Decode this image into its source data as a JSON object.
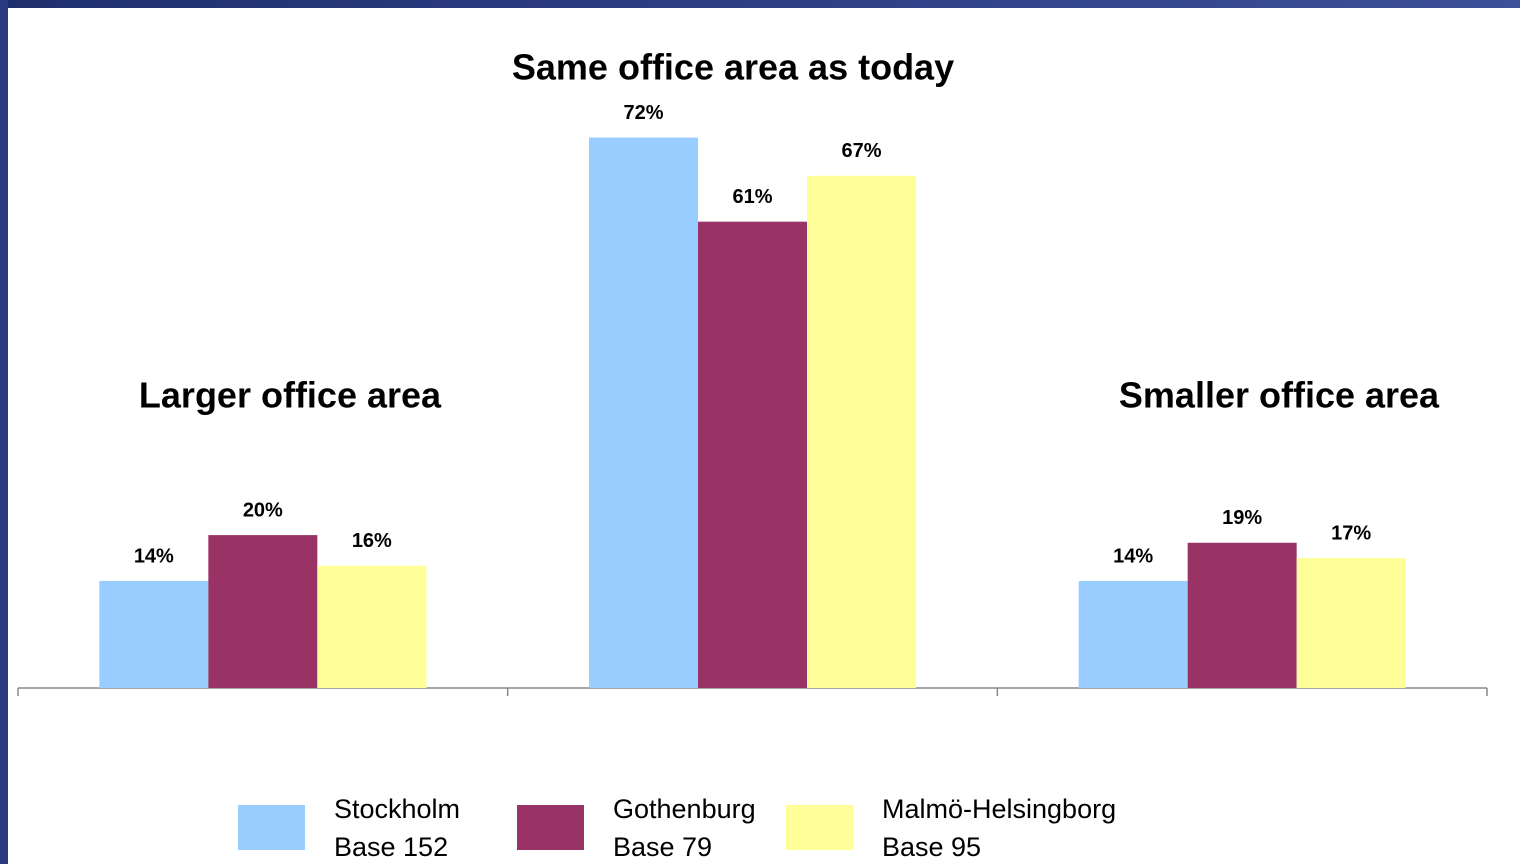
{
  "chart_data": {
    "type": "bar",
    "categories": [
      "Larger office area",
      "Same office area as today",
      "Smaller office area"
    ],
    "series": [
      {
        "name": "Stockholm",
        "base": "Base 152",
        "color": "#99ccff",
        "values": [
          14,
          72,
          14
        ],
        "value_labels": [
          "14%",
          "72%",
          "14%"
        ]
      },
      {
        "name": "Gothenburg",
        "base": "Base 79",
        "color": "#993366",
        "values": [
          20,
          61,
          19
        ],
        "value_labels": [
          "20%",
          "61%",
          "19%"
        ]
      },
      {
        "name": "Malmö-Helsingborg",
        "base": "Base 95",
        "color": "#ffff99",
        "values": [
          16,
          67,
          17
        ],
        "value_labels": [
          "16%",
          "67%",
          "17%"
        ]
      }
    ],
    "ylim": [
      0,
      90
    ]
  }
}
